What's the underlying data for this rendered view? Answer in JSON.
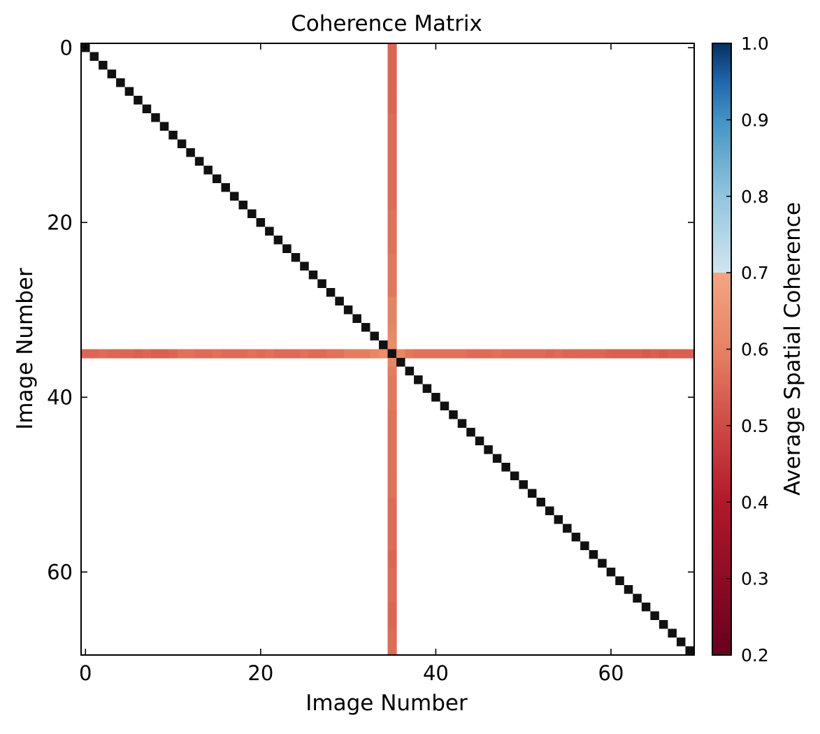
{
  "chart_data": {
    "type": "heatmap",
    "title": "Coherence Matrix",
    "xlabel": "Image Number",
    "ylabel": "Image Number",
    "n_images": 70,
    "xlim": [
      -0.5,
      69.5
    ],
    "ylim": [
      69.5,
      -0.5
    ],
    "x_ticks": [
      0,
      20,
      40,
      60
    ],
    "y_ticks": [
      0,
      20,
      40,
      60
    ],
    "x_tick_labels": [
      "0",
      "20",
      "40",
      "60"
    ],
    "y_tick_labels": [
      "0",
      "20",
      "40",
      "60"
    ],
    "diagonal_value": 1.0,
    "diagonal_color": "#111111",
    "background_value": null,
    "background_color": "#ffffff",
    "highlighted_image": 35,
    "highlight_row_values": [
      0.55,
      0.55,
      0.56,
      0.55,
      0.55,
      0.55,
      0.54,
      0.55,
      0.54,
      0.54,
      0.55,
      0.57,
      0.57,
      0.56,
      0.56,
      0.57,
      0.56,
      0.56,
      0.56,
      0.57,
      0.56,
      0.57,
      0.56,
      0.56,
      0.56,
      0.57,
      0.56,
      0.56,
      0.57,
      0.57,
      0.59,
      0.59,
      0.59,
      0.61,
      0.63,
      1.0,
      0.61,
      0.58,
      0.57,
      0.57,
      0.57,
      0.57,
      0.57,
      0.57,
      0.56,
      0.56,
      0.56,
      0.57,
      0.56,
      0.56,
      0.56,
      0.56,
      0.56,
      0.55,
      0.56,
      0.55,
      0.55,
      0.55,
      0.55,
      0.55,
      0.54,
      0.54,
      0.54,
      0.54,
      0.53,
      0.54,
      0.53,
      0.54,
      0.54,
      0.54
    ],
    "highlight_col_values": [
      0.55,
      0.55,
      0.55,
      0.55,
      0.55,
      0.55,
      0.55,
      0.55,
      0.56,
      0.56,
      0.56,
      0.56,
      0.56,
      0.56,
      0.56,
      0.56,
      0.56,
      0.56,
      0.56,
      0.57,
      0.57,
      0.57,
      0.57,
      0.57,
      0.58,
      0.58,
      0.58,
      0.58,
      0.58,
      0.6,
      0.6,
      0.6,
      0.61,
      0.62,
      0.63,
      1.0,
      0.61,
      0.59,
      0.58,
      0.58,
      0.58,
      0.58,
      0.57,
      0.57,
      0.57,
      0.57,
      0.57,
      0.57,
      0.57,
      0.57,
      0.57,
      0.57,
      0.56,
      0.56,
      0.56,
      0.56,
      0.56,
      0.56,
      0.55,
      0.55,
      0.56,
      0.56,
      0.56,
      0.56,
      0.55,
      0.55,
      0.55,
      0.56,
      0.56,
      0.56
    ],
    "colorbar": {
      "label": "Average Spatial Coherence",
      "vmin": 0.2,
      "vmax": 1.0,
      "ticks": [
        0.2,
        0.3,
        0.4,
        0.5,
        0.6,
        0.7,
        0.8,
        0.9,
        1.0
      ],
      "tick_labels": [
        "0.2",
        "0.3",
        "0.4",
        "0.5",
        "0.6",
        "0.7",
        "0.8",
        "0.9",
        "1.0"
      ],
      "colormap": "RdBu",
      "stops": [
        {
          "v": 0.2,
          "color": "#67001f"
        },
        {
          "v": 0.3,
          "color": "#8c0c25"
        },
        {
          "v": 0.4,
          "color": "#b2182b"
        },
        {
          "v": 0.5,
          "color": "#ce4a46"
        },
        {
          "v": 0.6,
          "color": "#e58363"
        },
        {
          "v": 0.7,
          "color": "#f4a582"
        },
        {
          "v": 0.7001,
          "color": "#d1e5f0"
        },
        {
          "v": 0.8,
          "color": "#92c5de"
        },
        {
          "v": 0.9,
          "color": "#4393c3"
        },
        {
          "v": 0.95,
          "color": "#2166ac"
        },
        {
          "v": 1.0,
          "color": "#053061"
        }
      ]
    }
  }
}
